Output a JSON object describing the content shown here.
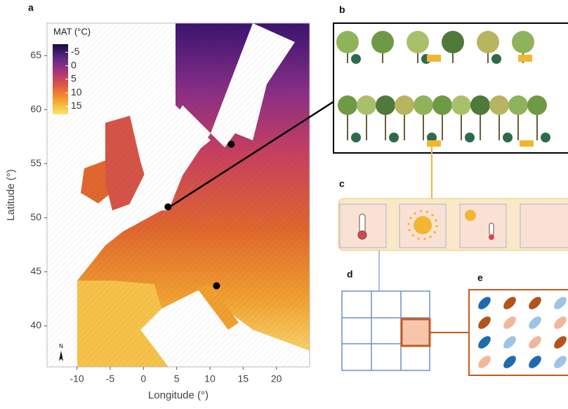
{
  "panel_labels": [
    "a",
    "b",
    "c",
    "d",
    "e"
  ],
  "map": {
    "xlabel": "Longitude (°)",
    "ylabel": "Latitude (°)",
    "xlim": [
      -14.5,
      25
    ],
    "ylim": [
      36.2,
      68
    ],
    "xticks": [
      -10,
      -5,
      0,
      5,
      10,
      15,
      20
    ],
    "yticks": [
      40,
      45,
      50,
      55,
      60,
      65
    ],
    "legend_title": "MAT (°C)",
    "legend_lim": [
      -8,
      18
    ],
    "legend_ticks": [
      -5,
      0,
      5,
      10,
      15
    ],
    "legend_colors": [
      "#1a0a3d",
      "#5b2a86",
      "#a9337a",
      "#e15b3c",
      "#f4a12c",
      "#fbe46a"
    ],
    "north": "N",
    "points": [
      {
        "lon": 3.7,
        "lat": 51
      },
      {
        "lon": 13.2,
        "lat": 56.8
      },
      {
        "lon": 11,
        "lat": 43.7
      }
    ]
  }
}
